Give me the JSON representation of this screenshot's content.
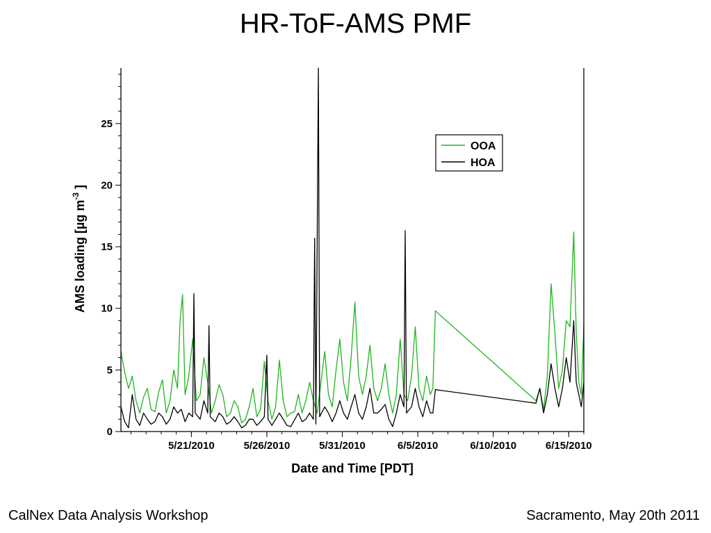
{
  "slide": {
    "title": "HR-ToF-AMS PMF",
    "footer_left": "CalNex Data Analysis Workshop",
    "footer_right": "Sacramento, May 20th 2011"
  },
  "chart_data": {
    "type": "line",
    "xlabel": "Date and Time [PDT]",
    "ylabel": "AMS loading [µg m",
    "ylabel_superscript": "-3",
    "ylabel_suffix": " ]",
    "xlim": [
      "2010-05-16 08:00",
      "2010-06-16 00:00"
    ],
    "ylim": [
      0,
      29.5
    ],
    "yticks": [
      0,
      5,
      10,
      15,
      20,
      25
    ],
    "xticks": [
      {
        "date": "2010-05-21",
        "label": "5/21/2010"
      },
      {
        "date": "2010-05-26",
        "label": "5/26/2010"
      },
      {
        "date": "2010-05-31",
        "label": "5/31/2010"
      },
      {
        "date": "2010-06-05",
        "label": "6/5/2010"
      },
      {
        "date": "2010-06-10",
        "label": "6/10/2010"
      },
      {
        "date": "2010-06-15",
        "label": "6/15/2010"
      }
    ],
    "legend_position": "top-right",
    "series": [
      {
        "name": "OOA",
        "color": "#1eb41e",
        "points": [
          [
            "2010-05-16 08:00",
            6.5
          ],
          [
            "2010-05-16 14:00",
            4.8
          ],
          [
            "2010-05-16 20:00",
            3.5
          ],
          [
            "2010-05-17 02:00",
            4.5
          ],
          [
            "2010-05-17 08:00",
            2.5
          ],
          [
            "2010-05-17 14:00",
            1.5
          ],
          [
            "2010-05-17 20:00",
            2.8
          ],
          [
            "2010-05-18 02:00",
            3.5
          ],
          [
            "2010-05-18 08:00",
            1.8
          ],
          [
            "2010-05-18 14:00",
            1.6
          ],
          [
            "2010-05-18 20:00",
            3.2
          ],
          [
            "2010-05-19 02:00",
            4.2
          ],
          [
            "2010-05-19 08:00",
            1.5
          ],
          [
            "2010-05-19 14:00",
            2.5
          ],
          [
            "2010-05-19 20:00",
            5.0
          ],
          [
            "2010-05-20 02:00",
            3.5
          ],
          [
            "2010-05-20 06:00",
            9.0
          ],
          [
            "2010-05-20 10:00",
            11.1
          ],
          [
            "2010-05-20 14:00",
            3.0
          ],
          [
            "2010-05-20 20:00",
            4.5
          ],
          [
            "2010-05-21 02:00",
            7.5
          ],
          [
            "2010-05-21 08:00",
            2.5
          ],
          [
            "2010-05-21 14:00",
            3.0
          ],
          [
            "2010-05-21 20:00",
            6.0
          ],
          [
            "2010-05-22 02:00",
            4.0
          ],
          [
            "2010-05-22 08:00",
            1.5
          ],
          [
            "2010-05-22 14:00",
            2.5
          ],
          [
            "2010-05-22 20:00",
            3.8
          ],
          [
            "2010-05-23 02:00",
            3.0
          ],
          [
            "2010-05-23 08:00",
            1.2
          ],
          [
            "2010-05-23 14:00",
            1.5
          ],
          [
            "2010-05-23 20:00",
            2.5
          ],
          [
            "2010-05-24 02:00",
            2.0
          ],
          [
            "2010-05-24 08:00",
            0.7
          ],
          [
            "2010-05-24 14:00",
            1.0
          ],
          [
            "2010-05-24 20:00",
            2.0
          ],
          [
            "2010-05-25 02:00",
            3.5
          ],
          [
            "2010-05-25 08:00",
            1.2
          ],
          [
            "2010-05-25 14:00",
            1.8
          ],
          [
            "2010-05-25 20:00",
            5.7
          ],
          [
            "2010-05-26 02:00",
            2.5
          ],
          [
            "2010-05-26 08:00",
            1.0
          ],
          [
            "2010-05-26 14:00",
            2.0
          ],
          [
            "2010-05-26 20:00",
            5.8
          ],
          [
            "2010-05-27 02:00",
            2.5
          ],
          [
            "2010-05-27 08:00",
            1.2
          ],
          [
            "2010-05-27 14:00",
            1.5
          ],
          [
            "2010-05-27 20:00",
            1.6
          ],
          [
            "2010-05-28 02:00",
            3.0
          ],
          [
            "2010-05-28 08:00",
            1.5
          ],
          [
            "2010-05-28 14:00",
            2.5
          ],
          [
            "2010-05-28 20:00",
            4.0
          ],
          [
            "2010-05-29 02:00",
            2.5
          ],
          [
            "2010-05-29 08:00",
            1.5
          ],
          [
            "2010-05-29 14:00",
            4.0
          ],
          [
            "2010-05-29 20:00",
            6.5
          ],
          [
            "2010-05-30 02:00",
            3.0
          ],
          [
            "2010-05-30 08:00",
            2.0
          ],
          [
            "2010-05-30 14:00",
            5.0
          ],
          [
            "2010-05-30 20:00",
            7.5
          ],
          [
            "2010-05-31 02:00",
            4.0
          ],
          [
            "2010-05-31 08:00",
            2.5
          ],
          [
            "2010-05-31 14:00",
            6.0
          ],
          [
            "2010-05-31 20:00",
            10.5
          ],
          [
            "2010-06-01 02:00",
            4.5
          ],
          [
            "2010-06-01 08:00",
            3.0
          ],
          [
            "2010-06-01 14:00",
            4.5
          ],
          [
            "2010-06-01 20:00",
            7.0
          ],
          [
            "2010-06-02 02:00",
            3.5
          ],
          [
            "2010-06-02 08:00",
            2.5
          ],
          [
            "2010-06-02 14:00",
            3.5
          ],
          [
            "2010-06-02 20:00",
            5.5
          ],
          [
            "2010-06-03 02:00",
            3.0
          ],
          [
            "2010-06-03 08:00",
            1.5
          ],
          [
            "2010-06-03 14:00",
            3.0
          ],
          [
            "2010-06-03 20:00",
            7.5
          ],
          [
            "2010-06-04 02:00",
            3.0
          ],
          [
            "2010-06-04 08:00",
            2.5
          ],
          [
            "2010-06-04 14:00",
            4.5
          ],
          [
            "2010-06-04 20:00",
            8.5
          ],
          [
            "2010-06-05 02:00",
            3.5
          ],
          [
            "2010-06-05 08:00",
            2.5
          ],
          [
            "2010-06-05 14:00",
            4.5
          ],
          [
            "2010-06-05 20:00",
            3.0
          ],
          [
            "2010-06-06 00:00",
            3.5
          ],
          [
            "2010-06-06 04:00",
            9.8
          ],
          [
            "2010-06-12 20:00",
            2.5
          ],
          [
            "2010-06-13 02:00",
            3.5
          ],
          [
            "2010-06-13 08:00",
            1.8
          ],
          [
            "2010-06-13 14:00",
            4.5
          ],
          [
            "2010-06-13 20:00",
            12.0
          ],
          [
            "2010-06-14 02:00",
            8.0
          ],
          [
            "2010-06-14 08:00",
            3.5
          ],
          [
            "2010-06-14 14:00",
            5.0
          ],
          [
            "2010-06-14 20:00",
            9.0
          ],
          [
            "2010-06-15 02:00",
            8.5
          ],
          [
            "2010-06-15 08:00",
            16.2
          ],
          [
            "2010-06-15 12:00",
            8.0
          ],
          [
            "2010-06-15 16:00",
            4.0
          ],
          [
            "2010-06-15 20:00",
            3.0
          ],
          [
            "2010-06-16 00:00",
            8.7
          ]
        ]
      },
      {
        "name": "HOA",
        "color": "#000000",
        "points": [
          [
            "2010-05-16 08:00",
            2.0
          ],
          [
            "2010-05-16 14:00",
            0.8
          ],
          [
            "2010-05-16 20:00",
            0.3
          ],
          [
            "2010-05-17 02:00",
            3.0
          ],
          [
            "2010-05-17 08:00",
            1.0
          ],
          [
            "2010-05-17 14:00",
            0.5
          ],
          [
            "2010-05-17 20:00",
            1.5
          ],
          [
            "2010-05-18 02:00",
            1.0
          ],
          [
            "2010-05-18 08:00",
            0.6
          ],
          [
            "2010-05-18 14:00",
            0.8
          ],
          [
            "2010-05-18 20:00",
            1.5
          ],
          [
            "2010-05-19 02:00",
            1.2
          ],
          [
            "2010-05-19 08:00",
            0.6
          ],
          [
            "2010-05-19 14:00",
            1.0
          ],
          [
            "2010-05-19 20:00",
            2.0
          ],
          [
            "2010-05-20 02:00",
            1.5
          ],
          [
            "2010-05-20 08:00",
            1.8
          ],
          [
            "2010-05-20 14:00",
            0.8
          ],
          [
            "2010-05-20 20:00",
            1.5
          ],
          [
            "2010-05-21 02:00",
            1.2
          ],
          [
            "2010-05-21 04:00",
            11.2
          ],
          [
            "2010-05-21 06:00",
            1.5
          ],
          [
            "2010-05-21 14:00",
            1.0
          ],
          [
            "2010-05-21 20:00",
            2.5
          ],
          [
            "2010-05-22 02:00",
            1.5
          ],
          [
            "2010-05-22 04:00",
            8.6
          ],
          [
            "2010-05-22 06:00",
            1.2
          ],
          [
            "2010-05-22 14:00",
            0.8
          ],
          [
            "2010-05-22 20:00",
            1.5
          ],
          [
            "2010-05-23 02:00",
            1.2
          ],
          [
            "2010-05-23 08:00",
            0.6
          ],
          [
            "2010-05-23 14:00",
            0.8
          ],
          [
            "2010-05-23 20:00",
            1.2
          ],
          [
            "2010-05-24 02:00",
            0.8
          ],
          [
            "2010-05-24 08:00",
            0.3
          ],
          [
            "2010-05-24 14:00",
            0.5
          ],
          [
            "2010-05-24 20:00",
            1.0
          ],
          [
            "2010-05-25 02:00",
            1.0
          ],
          [
            "2010-05-25 08:00",
            0.5
          ],
          [
            "2010-05-25 14:00",
            0.8
          ],
          [
            "2010-05-25 20:00",
            1.2
          ],
          [
            "2010-05-26 00:00",
            6.2
          ],
          [
            "2010-05-26 02:00",
            1.0
          ],
          [
            "2010-05-26 08:00",
            0.5
          ],
          [
            "2010-05-26 14:00",
            1.0
          ],
          [
            "2010-05-26 20:00",
            1.5
          ],
          [
            "2010-05-27 02:00",
            1.0
          ],
          [
            "2010-05-27 08:00",
            0.5
          ],
          [
            "2010-05-27 14:00",
            0.4
          ],
          [
            "2010-05-28 02:00",
            1.5
          ],
          [
            "2010-05-28 08:00",
            0.8
          ],
          [
            "2010-05-28 14:00",
            1.0
          ],
          [
            "2010-05-28 20:00",
            1.5
          ],
          [
            "2010-05-29 02:00",
            1.0
          ],
          [
            "2010-05-29 04:00",
            15.7
          ],
          [
            "2010-05-29 06:00",
            0.6
          ],
          [
            "2010-05-29 10:00",
            29.5
          ],
          [
            "2010-05-29 12:00",
            1.2
          ],
          [
            "2010-05-29 20:00",
            2.0
          ],
          [
            "2010-05-30 02:00",
            1.5
          ],
          [
            "2010-05-30 08:00",
            0.8
          ],
          [
            "2010-05-30 14:00",
            1.5
          ],
          [
            "2010-05-30 20:00",
            2.5
          ],
          [
            "2010-05-31 02:00",
            1.5
          ],
          [
            "2010-05-31 08:00",
            1.0
          ],
          [
            "2010-05-31 14:00",
            2.0
          ],
          [
            "2010-05-31 20:00",
            3.0
          ],
          [
            "2010-06-01 02:00",
            1.5
          ],
          [
            "2010-06-01 08:00",
            1.0
          ],
          [
            "2010-06-01 14:00",
            2.0
          ],
          [
            "2010-06-01 20:00",
            3.5
          ],
          [
            "2010-06-02 02:00",
            1.5
          ],
          [
            "2010-06-02 08:00",
            1.5
          ],
          [
            "2010-06-02 14:00",
            1.8
          ],
          [
            "2010-06-02 20:00",
            2.2
          ],
          [
            "2010-06-03 02:00",
            1.0
          ],
          [
            "2010-06-03 08:00",
            0.4
          ],
          [
            "2010-06-03 14:00",
            1.5
          ],
          [
            "2010-06-03 20:00",
            3.0
          ],
          [
            "2010-06-04 02:00",
            2.0
          ],
          [
            "2010-06-04 04:00",
            16.3
          ],
          [
            "2010-06-04 06:00",
            1.5
          ],
          [
            "2010-06-04 14:00",
            2.0
          ],
          [
            "2010-06-04 20:00",
            3.5
          ],
          [
            "2010-06-05 02:00",
            2.0
          ],
          [
            "2010-06-05 08:00",
            1.2
          ],
          [
            "2010-06-05 14:00",
            2.5
          ],
          [
            "2010-06-05 20:00",
            1.5
          ],
          [
            "2010-06-06 00:00",
            1.5
          ],
          [
            "2010-06-06 04:00",
            3.4
          ],
          [
            "2010-06-12 20:00",
            2.3
          ],
          [
            "2010-06-13 02:00",
            3.5
          ],
          [
            "2010-06-13 08:00",
            1.5
          ],
          [
            "2010-06-13 14:00",
            3.0
          ],
          [
            "2010-06-13 20:00",
            5.5
          ],
          [
            "2010-06-14 02:00",
            3.5
          ],
          [
            "2010-06-14 08:00",
            2.0
          ],
          [
            "2010-06-14 14:00",
            3.5
          ],
          [
            "2010-06-14 20:00",
            6.0
          ],
          [
            "2010-06-15 02:00",
            4.0
          ],
          [
            "2010-06-15 08:00",
            9.0
          ],
          [
            "2010-06-15 12:00",
            4.0
          ],
          [
            "2010-06-15 16:00",
            3.0
          ],
          [
            "2010-06-15 20:00",
            2.0
          ],
          [
            "2010-06-16 00:00",
            4.0
          ]
        ]
      }
    ]
  }
}
